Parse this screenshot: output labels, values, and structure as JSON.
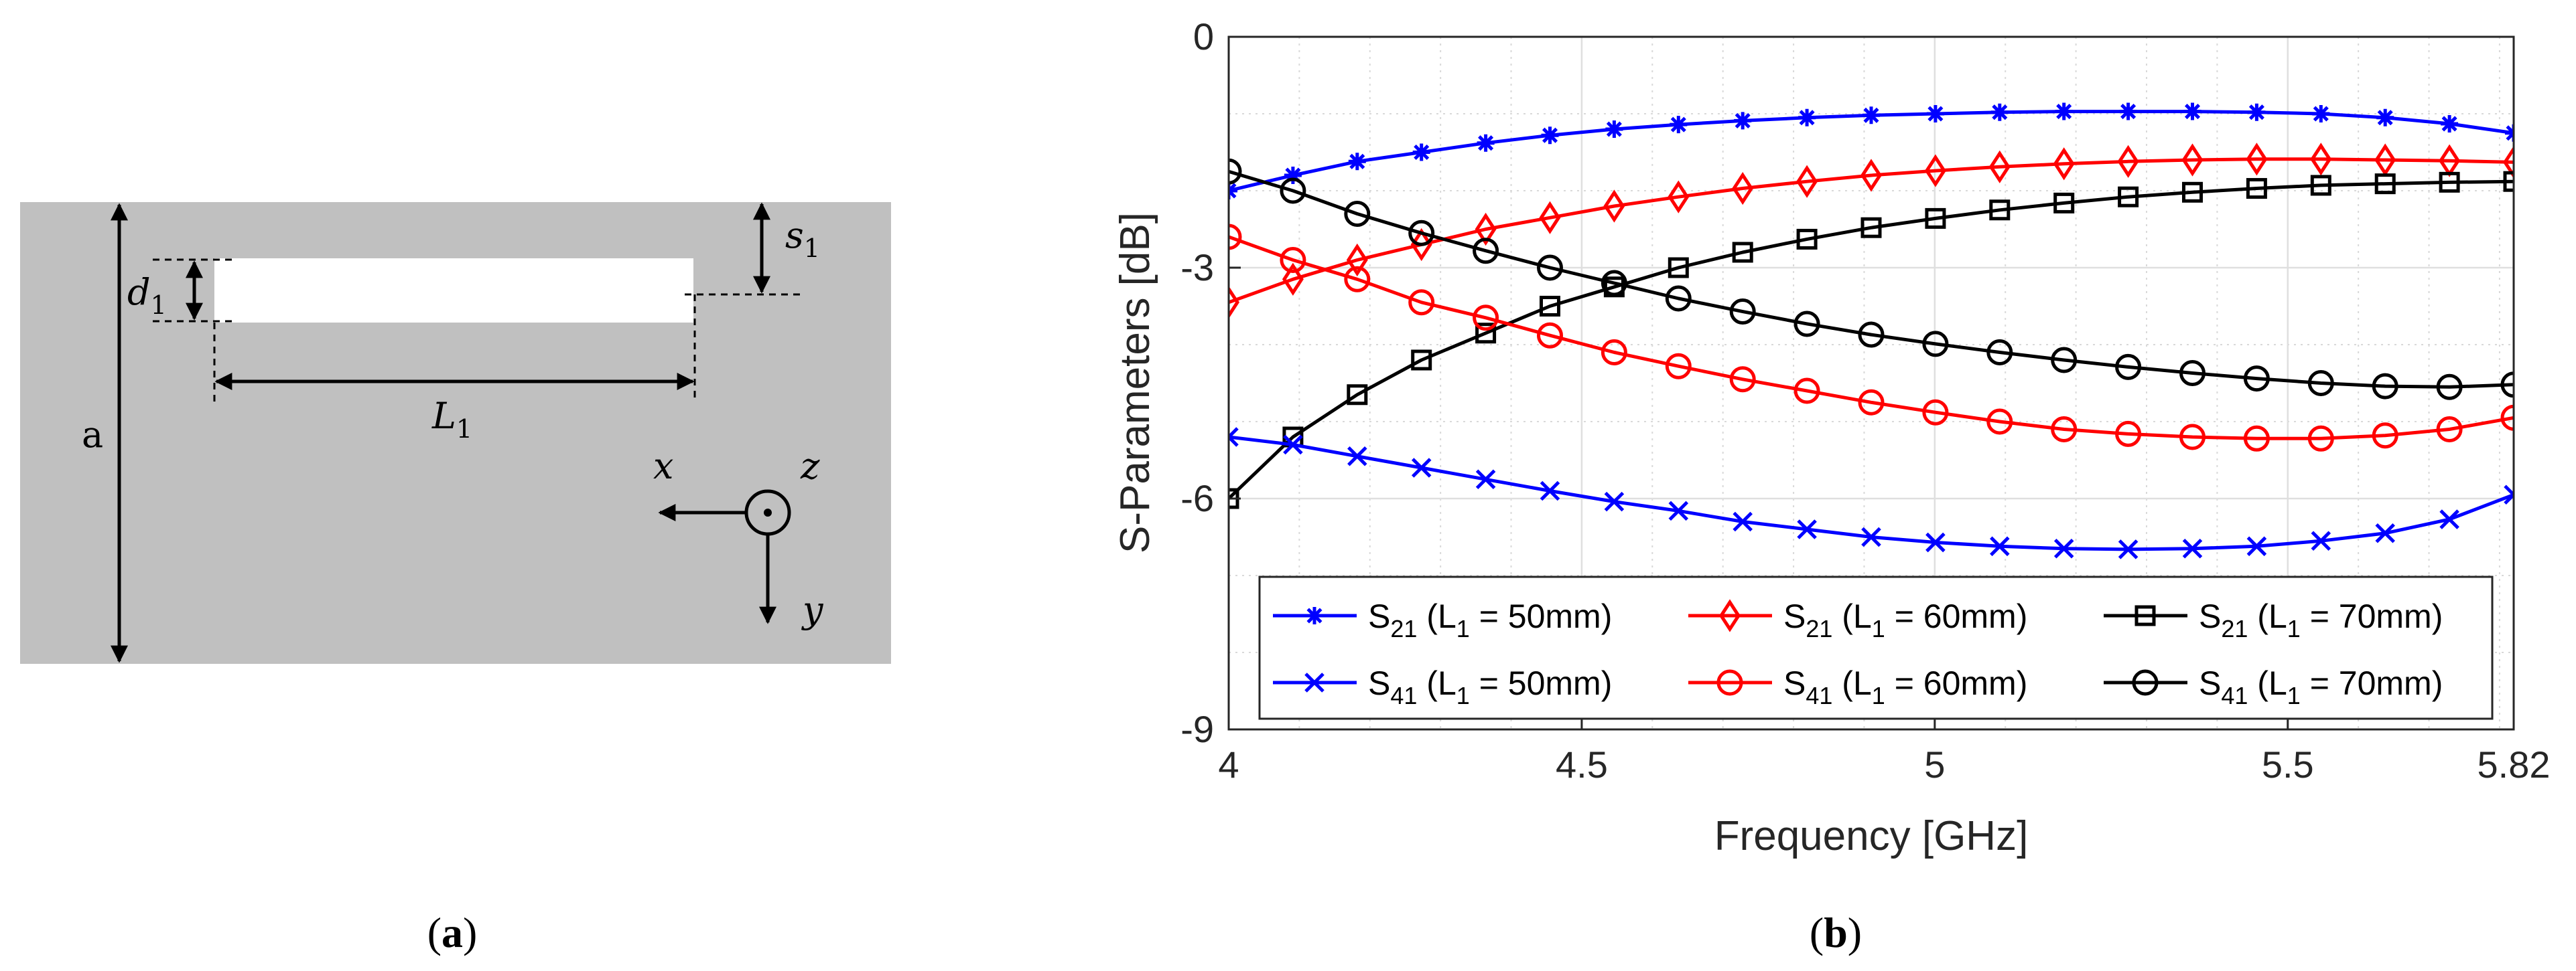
{
  "panel_a": {
    "label_open": "(",
    "label_letter": "a",
    "label_close": ")",
    "labels": {
      "s": "s",
      "s_sub": "1",
      "d": "d",
      "d_sub": "1",
      "L": "L",
      "L_sub": "1",
      "a": "a",
      "x": "x",
      "y": "y",
      "z": "z"
    },
    "colors": {
      "substrate": "#c0c0c0",
      "slot": "#ffffff"
    }
  },
  "panel_b": {
    "label_open": "(",
    "label_letter": "b",
    "label_close": ")"
  },
  "chart_data": {
    "type": "line",
    "xlabel": "Frequency [GHz]",
    "ylabel": "S-Parameters [dB]",
    "xlim": [
      4,
      5.82
    ],
    "ylim": [
      -9,
      0
    ],
    "xticks": [
      4,
      4.5,
      5,
      5.5,
      5.82
    ],
    "xtick_labels": [
      "4",
      "4.5",
      "5",
      "5.5",
      "5.82"
    ],
    "yticks": [
      0,
      -3,
      -6,
      -9
    ],
    "ytick_labels": [
      "0",
      "-3",
      "-6",
      "-9"
    ],
    "grid": true,
    "minor_grid": true,
    "legend_location": "bottom",
    "x": [
      4.0,
      4.091,
      4.182,
      4.273,
      4.364,
      4.455,
      4.546,
      4.637,
      4.728,
      4.819,
      4.91,
      5.001,
      5.092,
      5.183,
      5.274,
      5.365,
      5.456,
      5.547,
      5.638,
      5.729,
      5.82
    ],
    "series": [
      {
        "name_main": "S",
        "name_sub": "21",
        "name_mid": " (L",
        "name_sub2": "1",
        "name_tail": " = 50mm)",
        "color": "#0000ff",
        "marker": "asterisk",
        "values": [
          -2.0,
          -1.8,
          -1.62,
          -1.5,
          -1.38,
          -1.28,
          -1.2,
          -1.14,
          -1.09,
          -1.05,
          -1.02,
          -1.0,
          -0.98,
          -0.97,
          -0.97,
          -0.97,
          -0.98,
          -1.0,
          -1.05,
          -1.13,
          -1.25
        ]
      },
      {
        "name_main": "S",
        "name_sub": "21",
        "name_mid": " (L",
        "name_sub2": "1",
        "name_tail": " = 60mm)",
        "color": "#ff0000",
        "marker": "diamond",
        "values": [
          -3.45,
          -3.15,
          -2.9,
          -2.7,
          -2.5,
          -2.35,
          -2.2,
          -2.08,
          -1.97,
          -1.88,
          -1.8,
          -1.74,
          -1.69,
          -1.65,
          -1.62,
          -1.6,
          -1.59,
          -1.59,
          -1.6,
          -1.61,
          -1.63
        ]
      },
      {
        "name_main": "S",
        "name_sub": "21",
        "name_mid": " (L",
        "name_sub2": "1",
        "name_tail": " = 70mm)",
        "color": "#000000",
        "marker": "square",
        "values": [
          -6.0,
          -5.2,
          -4.65,
          -4.2,
          -3.85,
          -3.5,
          -3.25,
          -3.0,
          -2.8,
          -2.63,
          -2.48,
          -2.36,
          -2.25,
          -2.16,
          -2.08,
          -2.02,
          -1.97,
          -1.93,
          -1.91,
          -1.89,
          -1.88
        ]
      },
      {
        "name_main": "S",
        "name_sub": "41",
        "name_mid": " (L",
        "name_sub2": "1",
        "name_tail": " = 50mm)",
        "color": "#0000ff",
        "marker": "x",
        "values": [
          -5.2,
          -5.3,
          -5.45,
          -5.6,
          -5.75,
          -5.9,
          -6.04,
          -6.16,
          -6.3,
          -6.4,
          -6.5,
          -6.57,
          -6.62,
          -6.65,
          -6.66,
          -6.65,
          -6.62,
          -6.55,
          -6.45,
          -6.27,
          -5.95
        ]
      },
      {
        "name_main": "S",
        "name_sub": "41",
        "name_mid": " (L",
        "name_sub2": "1",
        "name_tail": " = 60mm)",
        "color": "#ff0000",
        "marker": "circle",
        "values": [
          -2.6,
          -2.9,
          -3.15,
          -3.45,
          -3.65,
          -3.88,
          -4.1,
          -4.28,
          -4.45,
          -4.6,
          -4.75,
          -4.88,
          -5.0,
          -5.1,
          -5.16,
          -5.2,
          -5.22,
          -5.22,
          -5.18,
          -5.1,
          -4.95
        ]
      },
      {
        "name_main": "S",
        "name_sub": "41",
        "name_mid": " (L",
        "name_sub2": "1",
        "name_tail": " = 70mm)",
        "color": "#000000",
        "marker": "circle",
        "values": [
          -1.75,
          -2.0,
          -2.3,
          -2.55,
          -2.78,
          -3.0,
          -3.2,
          -3.4,
          -3.57,
          -3.73,
          -3.87,
          -3.99,
          -4.1,
          -4.2,
          -4.29,
          -4.37,
          -4.44,
          -4.5,
          -4.54,
          -4.55,
          -4.52
        ]
      }
    ]
  }
}
